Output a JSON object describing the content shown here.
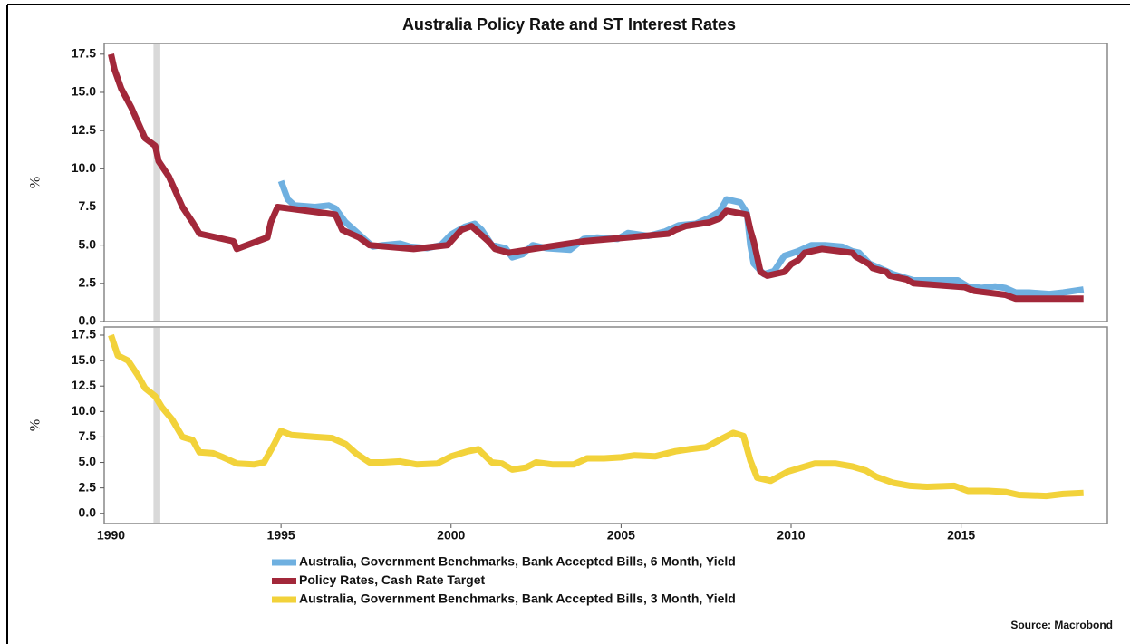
{
  "title": "Australia Policy Rate and ST Interest Rates",
  "source": "Source: Macrobond",
  "chart_data": [
    {
      "type": "line",
      "ylabel": "%",
      "xlim": [
        1989.8,
        2019.3
      ],
      "ylim": [
        0,
        18.2
      ],
      "yticks": [
        {
          "value": 0,
          "label": "0.0"
        },
        2.5,
        {
          "value": 5,
          "label": "5.0"
        },
        7.5,
        {
          "value": 10,
          "label": "10.0"
        },
        12.5,
        {
          "value": 15,
          "label": "15.0"
        },
        17.5
      ],
      "shade": [
        1991.25,
        1991.45
      ],
      "series": [
        {
          "name": "Australia, Government Benchmarks, Bank Accepted Bills, 6 Month, Yield",
          "color": "#6fb0e0",
          "x": [
            1995.0,
            1995.2,
            1995.4,
            1996.0,
            1996.4,
            1996.6,
            1996.9,
            1997.2,
            1997.5,
            1997.7,
            1998.0,
            1998.5,
            1998.8,
            1999.3,
            1999.7,
            2000.0,
            2000.4,
            2000.7,
            2000.9,
            2001.2,
            2001.6,
            2001.8,
            2002.1,
            2002.4,
            2002.8,
            2003.5,
            2003.9,
            2004.3,
            2004.9,
            2005.2,
            2005.8,
            2006.3,
            2006.7,
            2007.2,
            2007.6,
            2007.9,
            2008.1,
            2008.5,
            2008.7,
            2008.8,
            2008.9,
            2009.2,
            2009.5,
            2009.8,
            2010.2,
            2010.6,
            2011.0,
            2011.5,
            2011.8,
            2012.0,
            2012.3,
            2012.6,
            2013.0,
            2013.6,
            2014.0,
            2014.6,
            2014.9,
            2015.2,
            2015.6,
            2016.0,
            2016.3,
            2016.6,
            2017.0,
            2017.6,
            2018.0,
            2018.6
          ],
          "values": [
            9.2,
            8.0,
            7.6,
            7.5,
            7.6,
            7.4,
            6.5,
            5.9,
            5.3,
            4.9,
            5.0,
            5.1,
            4.9,
            4.8,
            5.0,
            5.7,
            6.2,
            6.4,
            6.0,
            5.0,
            4.8,
            4.2,
            4.4,
            5.0,
            4.8,
            4.7,
            5.4,
            5.5,
            5.4,
            5.8,
            5.6,
            5.9,
            6.3,
            6.4,
            6.8,
            7.2,
            8.0,
            7.8,
            7.1,
            5.0,
            3.8,
            3.1,
            3.3,
            4.3,
            4.6,
            5.0,
            5.0,
            4.9,
            4.6,
            4.5,
            3.8,
            3.5,
            3.1,
            2.7,
            2.7,
            2.7,
            2.7,
            2.3,
            2.2,
            2.3,
            2.2,
            1.9,
            1.9,
            1.8,
            1.9,
            2.1
          ]
        },
        {
          "name": "Policy Rates, Cash Rate Target",
          "color": "#a2283a",
          "x": [
            1990.0,
            1990.1,
            1990.3,
            1990.6,
            1990.8,
            1991.0,
            1991.3,
            1991.4,
            1991.7,
            1991.9,
            1992.1,
            1992.4,
            1992.6,
            1993.6,
            1993.7,
            1994.6,
            1994.7,
            1994.9,
            1996.6,
            1996.8,
            1997.3,
            1997.6,
            1998.9,
            1999.9,
            2000.1,
            2000.3,
            2000.6,
            2001.1,
            2001.3,
            2001.7,
            2002.4,
            2003.9,
            2005.2,
            2006.4,
            2006.6,
            2006.9,
            2007.6,
            2007.9,
            2008.1,
            2008.7,
            2008.8,
            2008.9,
            2009.0,
            2009.1,
            2009.3,
            2009.8,
            2009.9,
            2010.0,
            2010.2,
            2010.4,
            2010.9,
            2011.8,
            2011.9,
            2012.3,
            2012.4,
            2012.8,
            2012.9,
            2013.4,
            2013.6,
            2015.1,
            2015.4,
            2016.3,
            2016.6,
            2018.6
          ],
          "values": [
            17.5,
            16.5,
            15.25,
            14.0,
            13.0,
            12.0,
            11.5,
            10.5,
            9.5,
            8.5,
            7.5,
            6.5,
            5.75,
            5.25,
            4.75,
            5.5,
            6.5,
            7.5,
            7.0,
            6.0,
            5.5,
            5.0,
            4.75,
            5.0,
            5.5,
            6.0,
            6.25,
            5.25,
            4.75,
            4.5,
            4.75,
            5.25,
            5.5,
            5.75,
            6.0,
            6.25,
            6.5,
            6.75,
            7.25,
            7.0,
            6.0,
            5.25,
            4.25,
            3.25,
            3.0,
            3.25,
            3.5,
            3.75,
            4.0,
            4.5,
            4.75,
            4.5,
            4.25,
            3.75,
            3.5,
            3.25,
            3.0,
            2.75,
            2.5,
            2.25,
            2.0,
            1.75,
            1.5,
            1.5
          ]
        }
      ]
    },
    {
      "type": "line",
      "ylabel": "%",
      "xlim": [
        1989.8,
        2019.3
      ],
      "ylim": [
        -1,
        18.3
      ],
      "yticks": [
        {
          "value": 0,
          "label": "0.0"
        },
        2.5,
        {
          "value": 5,
          "label": "5.0"
        },
        7.5,
        {
          "value": 10,
          "label": "10.0"
        },
        12.5,
        {
          "value": 15,
          "label": "15.0"
        },
        17.5
      ],
      "xticks": [
        1990,
        1995,
        2000,
        2005,
        2010,
        2015
      ],
      "shade": [
        1991.25,
        1991.45
      ],
      "series": [
        {
          "name": "Australia, Government Benchmarks, Bank Accepted Bills, 3 Month, Yield",
          "color": "#f2d23a",
          "x": [
            1990.0,
            1990.2,
            1990.5,
            1990.8,
            1991.0,
            1991.3,
            1991.5,
            1991.8,
            1992.1,
            1992.4,
            1992.6,
            1993.0,
            1993.3,
            1993.7,
            1994.2,
            1994.5,
            1994.8,
            1995.0,
            1995.3,
            1996.0,
            1996.5,
            1996.9,
            1997.2,
            1997.6,
            1998.0,
            1998.5,
            1999.0,
            1999.6,
            2000.0,
            2000.5,
            2000.8,
            2001.2,
            2001.5,
            2001.8,
            2002.2,
            2002.5,
            2003.0,
            2003.6,
            2004.0,
            2004.5,
            2005.0,
            2005.4,
            2006.0,
            2006.6,
            2007.0,
            2007.5,
            2008.0,
            2008.3,
            2008.6,
            2008.8,
            2009.0,
            2009.4,
            2009.9,
            2010.3,
            2010.7,
            2011.3,
            2011.8,
            2012.2,
            2012.5,
            2013.0,
            2013.5,
            2014.0,
            2014.8,
            2015.2,
            2015.8,
            2016.3,
            2016.7,
            2017.5,
            2018.0,
            2018.6
          ],
          "values": [
            17.5,
            15.5,
            15.0,
            13.5,
            12.3,
            11.5,
            10.4,
            9.2,
            7.5,
            7.2,
            6.0,
            5.9,
            5.5,
            4.9,
            4.8,
            5.0,
            6.8,
            8.1,
            7.7,
            7.5,
            7.4,
            6.8,
            5.9,
            5.0,
            5.0,
            5.1,
            4.8,
            4.9,
            5.6,
            6.1,
            6.3,
            5.0,
            4.9,
            4.3,
            4.5,
            5.0,
            4.8,
            4.8,
            5.4,
            5.4,
            5.5,
            5.7,
            5.6,
            6.1,
            6.3,
            6.5,
            7.4,
            7.9,
            7.6,
            5.2,
            3.5,
            3.2,
            4.1,
            4.5,
            4.9,
            4.9,
            4.6,
            4.2,
            3.6,
            3.0,
            2.7,
            2.6,
            2.7,
            2.2,
            2.2,
            2.1,
            1.8,
            1.7,
            1.9,
            2.0
          ]
        }
      ]
    }
  ]
}
